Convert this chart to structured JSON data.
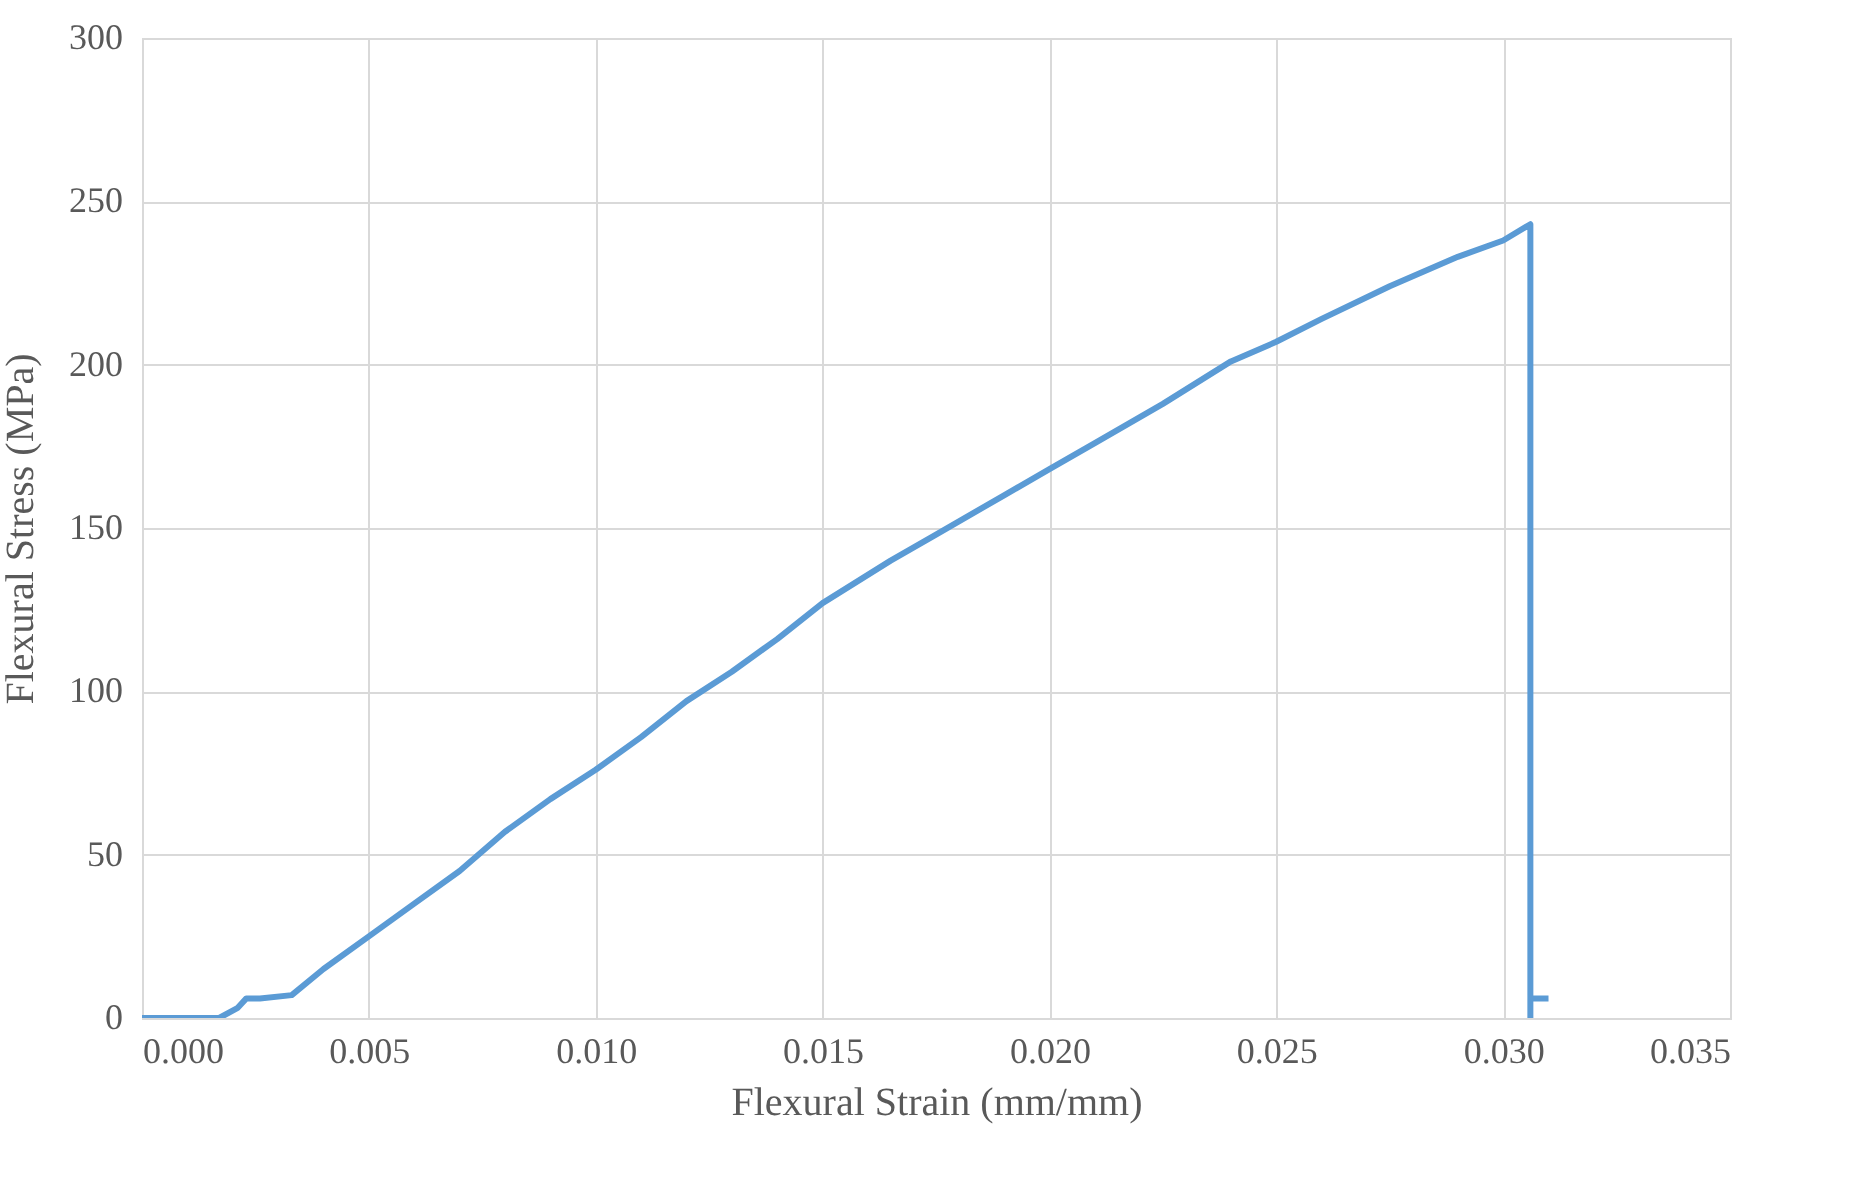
{
  "chart_data": {
    "type": "line",
    "xlabel": "Flexural Strain (mm/mm)",
    "ylabel": "Flexural Stress (MPa)",
    "x": [
      0,
      0.0017,
      0.0021,
      0.0023,
      0.0026,
      0.0033,
      0.004,
      0.005,
      0.006,
      0.007,
      0.008,
      0.009,
      0.01,
      0.011,
      0.012,
      0.013,
      0.014,
      0.015,
      0.0165,
      0.0175,
      0.019,
      0.02,
      0.021,
      0.0225,
      0.024,
      0.025,
      0.026,
      0.0275,
      0.029,
      0.03,
      0.0306,
      0.0306,
      0.0306,
      0.031
    ],
    "series": [
      {
        "color": "#5b9bd5",
        "values": [
          0,
          0,
          3,
          6,
          6,
          7,
          15,
          25,
          35,
          45,
          57,
          67,
          76,
          86,
          97,
          106,
          116,
          127,
          140,
          148,
          160,
          168,
          176,
          188,
          201,
          207,
          214,
          224,
          233,
          238,
          243,
          0,
          6,
          6
        ]
      }
    ],
    "xlim": [
      0,
      0.035
    ],
    "xticks": [
      {
        "value": 0,
        "label": "0.000"
      },
      {
        "value": 0.005,
        "label": "0.005"
      },
      {
        "value": 0.01,
        "label": "0.010"
      },
      {
        "value": 0.015,
        "label": "0.015"
      },
      {
        "value": 0.02,
        "label": "0.020"
      },
      {
        "value": 0.025,
        "label": "0.025"
      },
      {
        "value": 0.03,
        "label": "0.030"
      },
      {
        "value": 0.035,
        "label": "0.035"
      }
    ],
    "ylim": [
      0,
      300
    ],
    "yticks": [
      0,
      50,
      100,
      150,
      200,
      250,
      300
    ],
    "grid": true,
    "marker": "none",
    "line_style": "solid"
  }
}
